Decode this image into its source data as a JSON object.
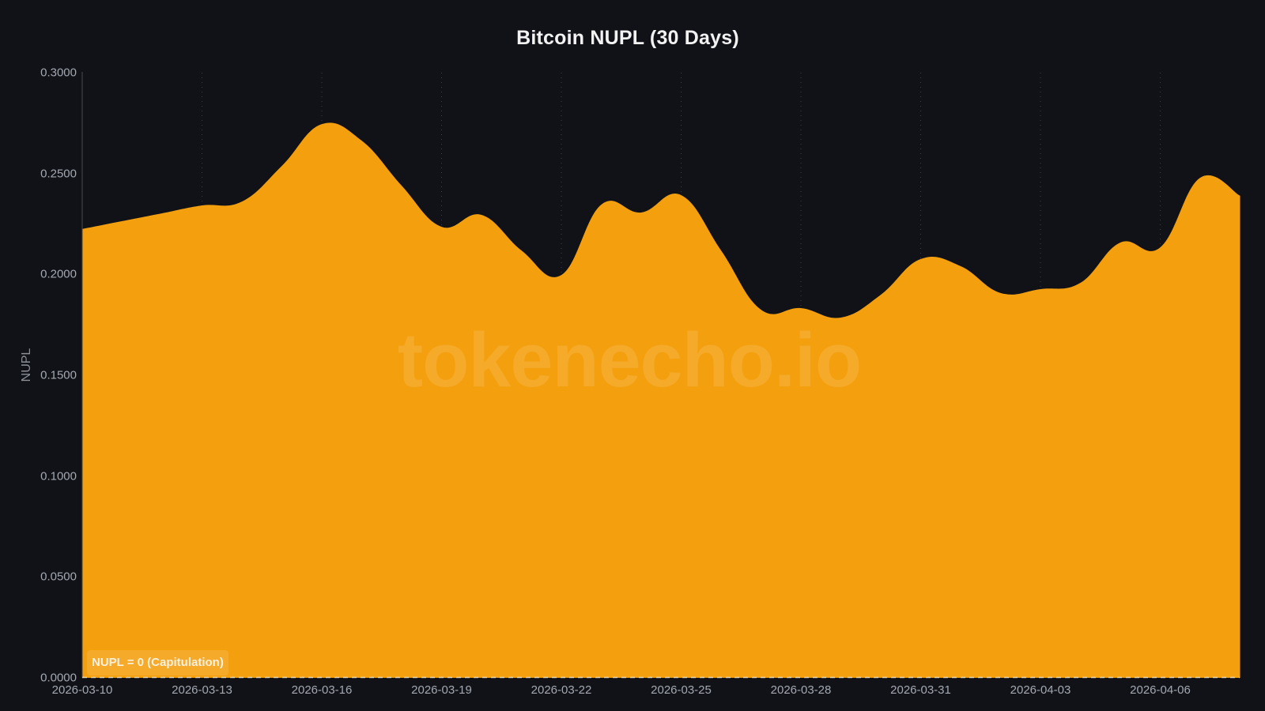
{
  "title": "Bitcoin NUPL (30 Days)",
  "watermark": "tokenecho.io",
  "annotation": "NUPL = 0 (Capitulation)",
  "colors": {
    "background": "#111217",
    "fill": "#f49f0d",
    "axis": "#4a4a4e",
    "grid": "#3a3d45",
    "zero_line": "#e9d8b4",
    "tick_text": "#a3a8b2"
  },
  "chart_data": {
    "type": "area",
    "title": "Bitcoin NUPL (30 Days)",
    "xlabel": "",
    "ylabel": "NUPL",
    "ylim": [
      0,
      0.3
    ],
    "yticks": [
      "0.0000",
      "0.0500",
      "0.1000",
      "0.1500",
      "0.2000",
      "0.2500",
      "0.3000"
    ],
    "xticks": [
      "2026-03-10",
      "2026-03-13",
      "2026-03-16",
      "2026-03-19",
      "2026-03-22",
      "2026-03-25",
      "2026-03-28",
      "2026-03-31",
      "2026-04-03",
      "2026-04-06"
    ],
    "grid": true,
    "reference_line": {
      "y": 0,
      "label": "NUPL = 0 (Capitulation)",
      "style": "dashed"
    },
    "x": [
      "2026-03-10",
      "2026-03-11",
      "2026-03-12",
      "2026-03-13",
      "2026-03-14",
      "2026-03-15",
      "2026-03-16",
      "2026-03-17",
      "2026-03-18",
      "2026-03-19",
      "2026-03-20",
      "2026-03-21",
      "2026-03-22",
      "2026-03-23",
      "2026-03-24",
      "2026-03-25",
      "2026-03-26",
      "2026-03-27",
      "2026-03-28",
      "2026-03-29",
      "2026-03-30",
      "2026-03-31",
      "2026-04-01",
      "2026-04-02",
      "2026-04-03",
      "2026-04-04",
      "2026-04-05",
      "2026-04-06",
      "2026-04-07",
      "2026-04-08"
    ],
    "series": [
      {
        "name": "NUPL",
        "values": [
          0.2225,
          0.2264,
          0.2303,
          0.2342,
          0.2361,
          0.2538,
          0.2745,
          0.2663,
          0.244,
          0.2236,
          0.2295,
          0.2119,
          0.1997,
          0.2346,
          0.2307,
          0.2393,
          0.2119,
          0.1825,
          0.1833,
          0.1786,
          0.1899,
          0.2076,
          0.2041,
          0.1908,
          0.1927,
          0.1958,
          0.2158,
          0.2134,
          0.2479,
          0.239
        ]
      }
    ]
  }
}
